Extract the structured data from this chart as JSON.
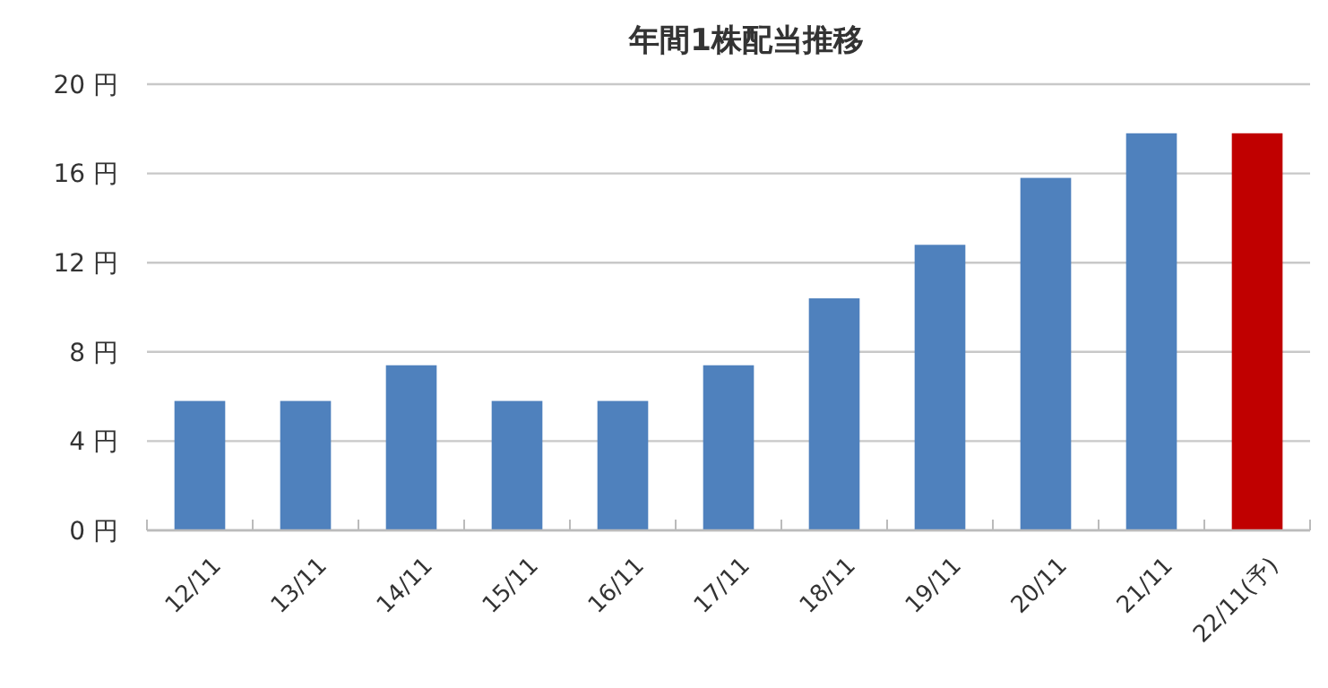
{
  "chart_data": {
    "type": "bar",
    "title": "年間1株配当推移",
    "categories": [
      "12/11",
      "13/11",
      "14/11",
      "15/11",
      "16/11",
      "17/11",
      "18/11",
      "19/11",
      "20/11",
      "21/11",
      "22/11(予)"
    ],
    "values": [
      5.8,
      5.8,
      7.4,
      5.8,
      5.8,
      7.4,
      10.4,
      12.8,
      15.8,
      17.8,
      17.8
    ],
    "colors": [
      "#4f81bd",
      "#4f81bd",
      "#4f81bd",
      "#4f81bd",
      "#4f81bd",
      "#4f81bd",
      "#4f81bd",
      "#4f81bd",
      "#4f81bd",
      "#4f81bd",
      "#c00000"
    ],
    "ylim": [
      0,
      20
    ],
    "yticks": [
      {
        "value": 0,
        "label": "0 円"
      },
      {
        "value": 4,
        "label": "4 円"
      },
      {
        "value": 8,
        "label": "8 円"
      },
      {
        "value": 12,
        "label": "12 円"
      },
      {
        "value": 16,
        "label": "16 円"
      },
      {
        "value": 20,
        "label": "20 円"
      }
    ],
    "grid": "y"
  }
}
